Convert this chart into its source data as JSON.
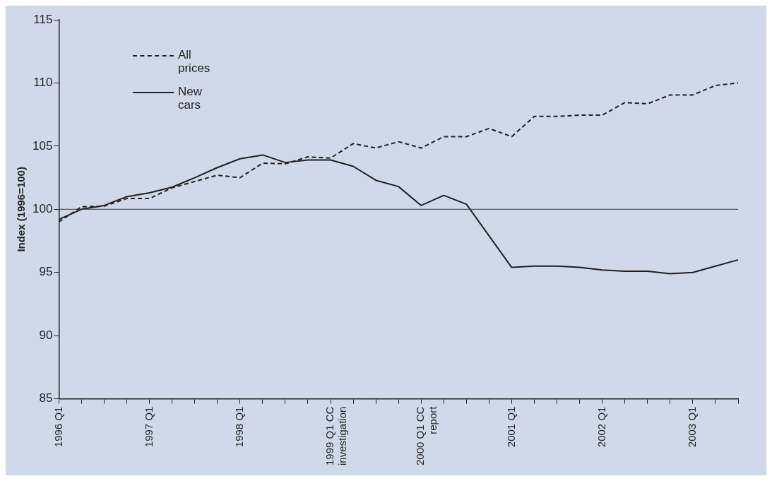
{
  "chart_data": {
    "type": "line",
    "ylabel": "Index (1996=100)",
    "categories": [
      "1996 Q1",
      null,
      null,
      null,
      "1997 Q1",
      null,
      null,
      null,
      "1998 Q1",
      null,
      null,
      null,
      "1999 Q1 CC investigation",
      null,
      null,
      null,
      "2000 Q1 CC report",
      null,
      null,
      null,
      "2001 Q1",
      null,
      null,
      null,
      "2002 Q1",
      null,
      null,
      null,
      "2003 Q1",
      null,
      null
    ],
    "series": [
      {
        "name": "All prices",
        "color": "#231f20",
        "line_style": "dashed",
        "values": [
          99.0,
          100.2,
          100.25,
          100.85,
          100.85,
          101.7,
          102.2,
          102.7,
          102.5,
          103.65,
          103.6,
          104.15,
          104.05,
          105.2,
          104.85,
          105.35,
          104.85,
          105.75,
          105.75,
          106.4,
          105.75,
          107.35,
          107.35,
          107.45,
          107.45,
          108.45,
          108.35,
          109.05,
          109.05,
          109.8,
          110.0
        ]
      },
      {
        "name": "New cars",
        "color": "#231f20",
        "line_style": "solid",
        "values": [
          99.2,
          100.0,
          100.3,
          101.0,
          101.3,
          101.75,
          102.5,
          103.3,
          104.0,
          104.3,
          103.7,
          103.9,
          103.9,
          103.4,
          102.3,
          101.8,
          100.3,
          101.1,
          100.4,
          97.9,
          95.4,
          95.5,
          95.5,
          95.4,
          95.2,
          95.1,
          95.1,
          94.9,
          95.0,
          95.5,
          96.0
        ]
      }
    ],
    "ylim": [
      85,
      115
    ],
    "yticks": [
      85,
      90,
      95,
      100,
      105,
      110,
      115
    ],
    "ref_lines": [
      {
        "axis": "y",
        "value": 100,
        "color": "#3a3a3a"
      }
    ],
    "grid": false,
    "legend": "top left",
    "marker": "none"
  }
}
